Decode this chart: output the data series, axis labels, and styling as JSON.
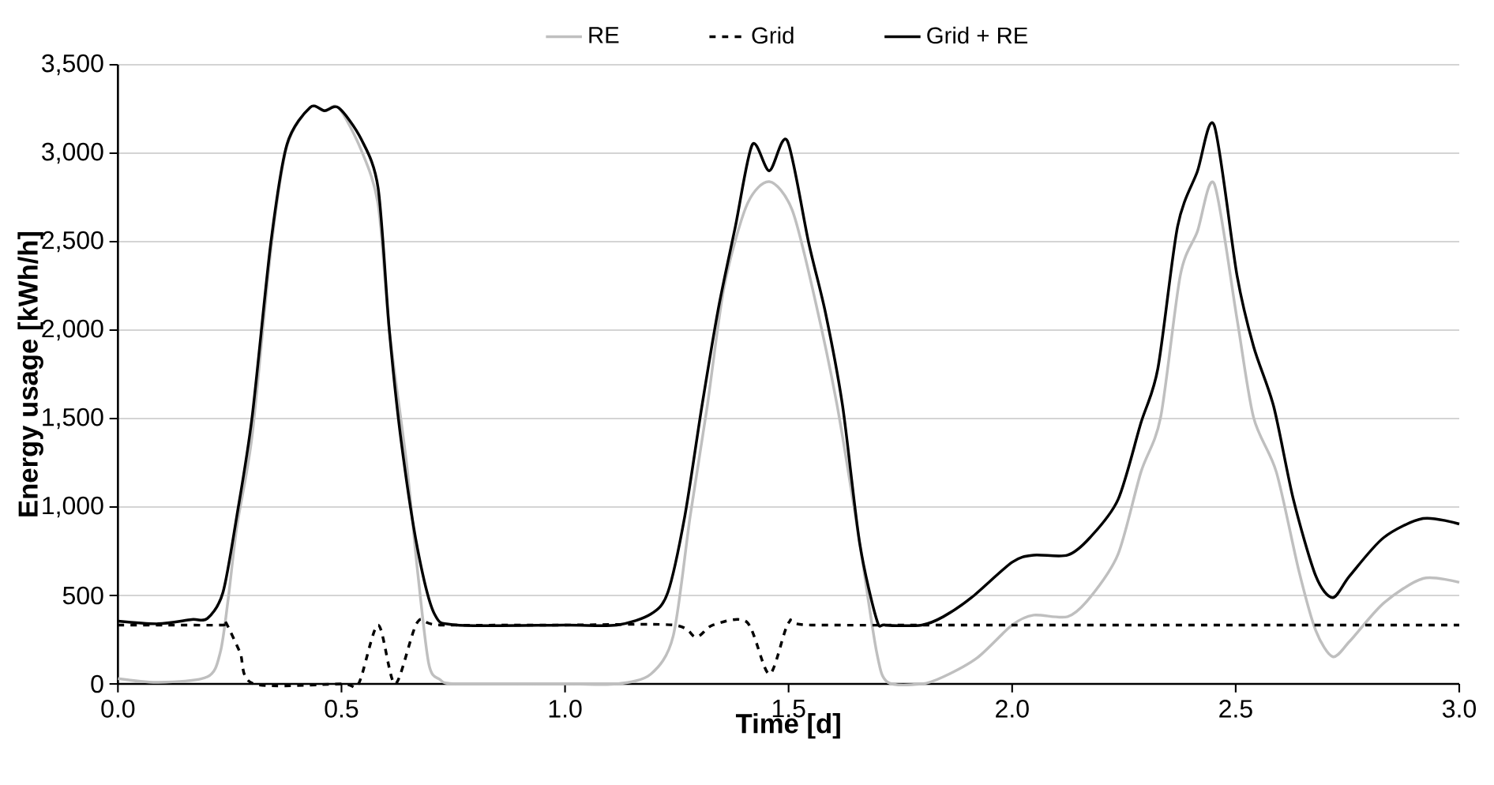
{
  "chart_data": {
    "type": "line",
    "xlabel": "Time [d]",
    "ylabel": "Energy usage  [kWh/h]",
    "xlim": [
      0,
      3
    ],
    "xticks": [
      {
        "value": 0,
        "label": "0.0"
      },
      {
        "value": 0.5,
        "label": "0.5"
      },
      {
        "value": 1,
        "label": "1.0"
      },
      {
        "value": 1.5,
        "label": "1.5"
      },
      {
        "value": 2,
        "label": "2.0"
      },
      {
        "value": 2.5,
        "label": "2.5"
      },
      {
        "value": 3,
        "label": "3.0"
      }
    ],
    "ylim": [
      0,
      3500
    ],
    "yticks": [
      {
        "value": 0,
        "label": "0"
      },
      {
        "value": 500,
        "label": "500"
      },
      {
        "value": 1000,
        "label": "1,000"
      },
      {
        "value": 1500,
        "label": "1,500"
      },
      {
        "value": 2000,
        "label": "2,000"
      },
      {
        "value": 2500,
        "label": "2,500"
      },
      {
        "value": 3000,
        "label": "3,000"
      },
      {
        "value": 3500,
        "label": "3,500"
      }
    ],
    "grid": "y",
    "legend": "top",
    "marker": "none",
    "series": [
      {
        "name": "RE",
        "color": "#bfbfbf",
        "line_style": "solid",
        "x": [
          0,
          0.09,
          0.2,
          0.229,
          0.247,
          0.266,
          0.3,
          0.342,
          0.378,
          0.43,
          0.462,
          0.494,
          0.544,
          0.582,
          0.607,
          0.645,
          0.67,
          0.695,
          0.72,
          0.76,
          1.0,
          1.116,
          1.192,
          1.242,
          1.28,
          1.318,
          1.356,
          1.407,
          1.457,
          1.508,
          1.558,
          1.609,
          1.659,
          1.697,
          1.722,
          1.798,
          1.846,
          1.922,
          2.0,
          2.048,
          2.124,
          2.174,
          2.237,
          2.288,
          2.332,
          2.376,
          2.414,
          2.452,
          2.503,
          2.54,
          2.591,
          2.641,
          2.679,
          2.717,
          2.755,
          2.831,
          2.919,
          3.0
        ],
        "values": [
          30,
          9,
          40,
          179,
          488,
          889,
          1400,
          2450,
          3040,
          3259,
          3240,
          3256,
          3018,
          2709,
          2000,
          1259,
          642,
          117,
          25,
          0,
          0,
          0,
          56,
          272,
          950,
          1568,
          2247,
          2709,
          2839,
          2679,
          2185,
          1568,
          796,
          179,
          9,
          0,
          40,
          148,
          333,
          389,
          380,
          488,
          734,
          1197,
          1506,
          2308,
          2555,
          2827,
          2061,
          1506,
          1197,
          642,
          302,
          154,
          241,
          457,
          596,
          574
        ]
      },
      {
        "name": "Grid",
        "color": "#000000",
        "line_style": "dashed",
        "x": [
          0,
          0.1,
          0.235,
          0.241,
          0.273,
          0.304,
          0.5,
          0.538,
          0.582,
          0.62,
          0.67,
          0.72,
          1.0,
          1.242,
          1.293,
          1.331,
          1.407,
          1.457,
          1.501,
          1.55,
          2.0,
          2.5,
          3.0
        ],
        "values": [
          333,
          333,
          333,
          349,
          179,
          0,
          0,
          0,
          333,
          0,
          349,
          333,
          333,
          333,
          265,
          333,
          349,
          56,
          349,
          333,
          333,
          333,
          333
        ]
      },
      {
        "name": "Grid + RE",
        "color": "#000000",
        "line_style": "solid",
        "x": [
          0,
          0.09,
          0.165,
          0.2,
          0.235,
          0.266,
          0.3,
          0.342,
          0.378,
          0.43,
          0.462,
          0.494,
          0.544,
          0.582,
          0.607,
          0.633,
          0.67,
          0.708,
          0.759,
          1.0,
          1.116,
          1.192,
          1.23,
          1.268,
          1.306,
          1.343,
          1.381,
          1.419,
          1.457,
          1.497,
          1.545,
          1.583,
          1.621,
          1.659,
          1.697,
          1.716,
          1.798,
          1.846,
          1.909,
          2.0,
          2.048,
          2.124,
          2.174,
          2.237,
          2.288,
          2.326,
          2.37,
          2.414,
          2.452,
          2.503,
          2.54,
          2.585,
          2.629,
          2.679,
          2.717,
          2.755,
          2.831,
          2.919,
          3.0
        ],
        "values": [
          355,
          340,
          364,
          370,
          518,
          950,
          1506,
          2493,
          3049,
          3259,
          3240,
          3256,
          3080,
          2802,
          2000,
          1383,
          765,
          395,
          333,
          333,
          333,
          395,
          518,
          950,
          1568,
          2123,
          2586,
          3049,
          2901,
          3071,
          2493,
          2092,
          1568,
          796,
          364,
          333,
          333,
          380,
          488,
          688,
          728,
          728,
          827,
          1043,
          1475,
          1784,
          2586,
          2895,
          3157,
          2308,
          1907,
          1568,
          1043,
          611,
          488,
          611,
          827,
          935,
          904
        ]
      }
    ]
  }
}
